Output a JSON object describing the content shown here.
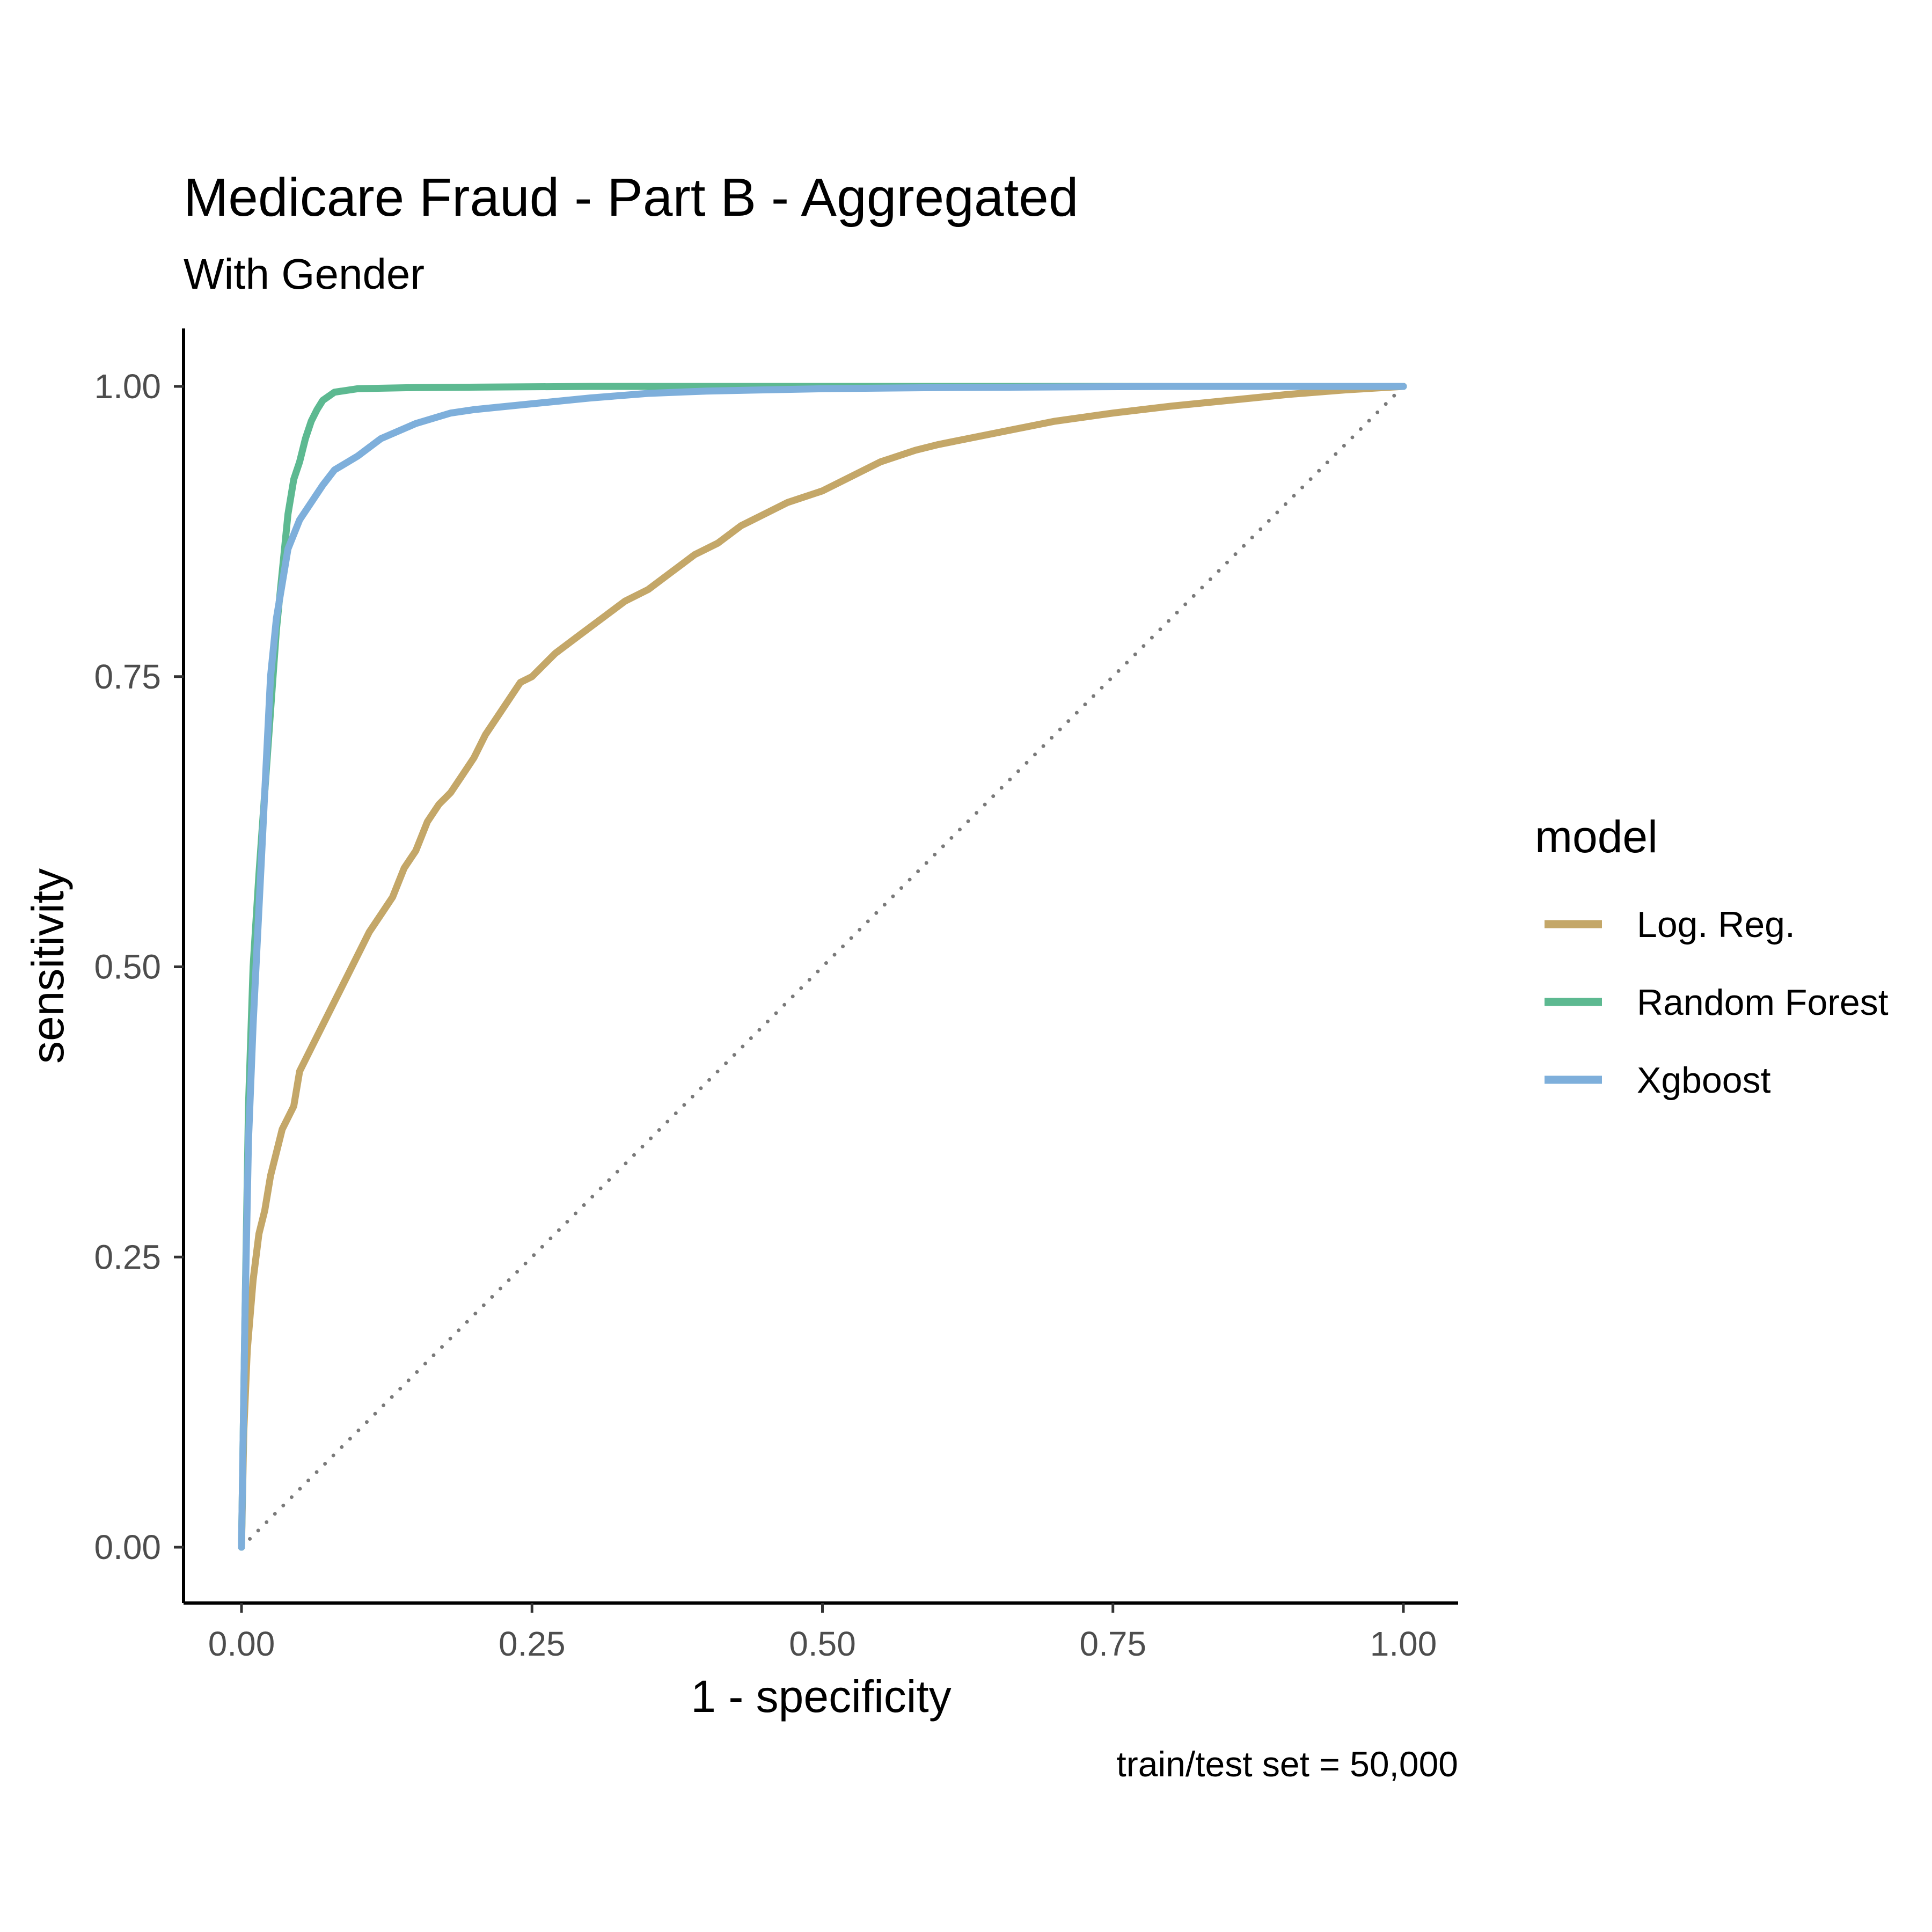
{
  "chart_data": {
    "type": "line",
    "title": "Medicare Fraud - Part B - Aggregated",
    "subtitle": "With Gender",
    "xlabel": "1 - specificity",
    "ylabel": "sensitivity",
    "caption": "train/test set = 50,000",
    "xlim": [
      0,
      1
    ],
    "ylim": [
      0,
      1
    ],
    "x_ticks": [
      "0.00",
      "0.25",
      "0.50",
      "0.75",
      "1.00"
    ],
    "y_ticks": [
      "0.00",
      "0.25",
      "0.50",
      "0.75",
      "1.00"
    ],
    "grid": false,
    "legend": {
      "title": "model",
      "position": "right"
    },
    "reference_line": {
      "style": "dotted",
      "color": "#7a7a7a",
      "points": [
        [
          0,
          0
        ],
        [
          1,
          1
        ]
      ]
    },
    "series": [
      {
        "name": "Log. Reg.",
        "color": "#C4A768",
        "points": [
          [
            0,
            0
          ],
          [
            0.002,
            0.1
          ],
          [
            0.005,
            0.17
          ],
          [
            0.01,
            0.23
          ],
          [
            0.015,
            0.27
          ],
          [
            0.02,
            0.29
          ],
          [
            0.025,
            0.32
          ],
          [
            0.03,
            0.34
          ],
          [
            0.035,
            0.36
          ],
          [
            0.045,
            0.38
          ],
          [
            0.05,
            0.41
          ],
          [
            0.06,
            0.43
          ],
          [
            0.07,
            0.45
          ],
          [
            0.08,
            0.47
          ],
          [
            0.09,
            0.49
          ],
          [
            0.1,
            0.51
          ],
          [
            0.11,
            0.53
          ],
          [
            0.12,
            0.545
          ],
          [
            0.13,
            0.56
          ],
          [
            0.14,
            0.585
          ],
          [
            0.15,
            0.6
          ],
          [
            0.16,
            0.625
          ],
          [
            0.17,
            0.64
          ],
          [
            0.18,
            0.65
          ],
          [
            0.19,
            0.665
          ],
          [
            0.2,
            0.68
          ],
          [
            0.21,
            0.7
          ],
          [
            0.22,
            0.715
          ],
          [
            0.23,
            0.73
          ],
          [
            0.24,
            0.745
          ],
          [
            0.25,
            0.75
          ],
          [
            0.27,
            0.77
          ],
          [
            0.29,
            0.785
          ],
          [
            0.31,
            0.8
          ],
          [
            0.33,
            0.815
          ],
          [
            0.35,
            0.825
          ],
          [
            0.37,
            0.84
          ],
          [
            0.39,
            0.855
          ],
          [
            0.41,
            0.865
          ],
          [
            0.43,
            0.88
          ],
          [
            0.45,
            0.89
          ],
          [
            0.47,
            0.9
          ],
          [
            0.5,
            0.91
          ],
          [
            0.53,
            0.925
          ],
          [
            0.55,
            0.935
          ],
          [
            0.58,
            0.945
          ],
          [
            0.6,
            0.95
          ],
          [
            0.65,
            0.96
          ],
          [
            0.7,
            0.97
          ],
          [
            0.75,
            0.977
          ],
          [
            0.8,
            0.983
          ],
          [
            0.85,
            0.988
          ],
          [
            0.9,
            0.993
          ],
          [
            0.95,
            0.997
          ],
          [
            1,
            1
          ]
        ]
      },
      {
        "name": "Random Forest",
        "color": "#5DB991",
        "points": [
          [
            0,
            0
          ],
          [
            0.003,
            0.2
          ],
          [
            0.006,
            0.38
          ],
          [
            0.01,
            0.5
          ],
          [
            0.015,
            0.58
          ],
          [
            0.02,
            0.65
          ],
          [
            0.025,
            0.72
          ],
          [
            0.03,
            0.79
          ],
          [
            0.035,
            0.84
          ],
          [
            0.04,
            0.89
          ],
          [
            0.045,
            0.92
          ],
          [
            0.05,
            0.935
          ],
          [
            0.055,
            0.955
          ],
          [
            0.06,
            0.97
          ],
          [
            0.065,
            0.98
          ],
          [
            0.07,
            0.988
          ],
          [
            0.08,
            0.995
          ],
          [
            0.1,
            0.998
          ],
          [
            0.15,
            0.999
          ],
          [
            0.3,
            1
          ],
          [
            1,
            1
          ]
        ]
      },
      {
        "name": "Xgboost",
        "color": "#7EAFDB",
        "points": [
          [
            0,
            0
          ],
          [
            0.003,
            0.2
          ],
          [
            0.006,
            0.35
          ],
          [
            0.01,
            0.45
          ],
          [
            0.015,
            0.55
          ],
          [
            0.02,
            0.65
          ],
          [
            0.025,
            0.75
          ],
          [
            0.03,
            0.8
          ],
          [
            0.035,
            0.83
          ],
          [
            0.04,
            0.86
          ],
          [
            0.05,
            0.885
          ],
          [
            0.06,
            0.9
          ],
          [
            0.07,
            0.915
          ],
          [
            0.08,
            0.928
          ],
          [
            0.1,
            0.94
          ],
          [
            0.12,
            0.955
          ],
          [
            0.15,
            0.968
          ],
          [
            0.18,
            0.977
          ],
          [
            0.2,
            0.98
          ],
          [
            0.25,
            0.985
          ],
          [
            0.3,
            0.99
          ],
          [
            0.35,
            0.994
          ],
          [
            0.4,
            0.996
          ],
          [
            0.5,
            0.998
          ],
          [
            0.6,
            0.999
          ],
          [
            0.8,
            1
          ],
          [
            1,
            1
          ]
        ]
      }
    ]
  }
}
